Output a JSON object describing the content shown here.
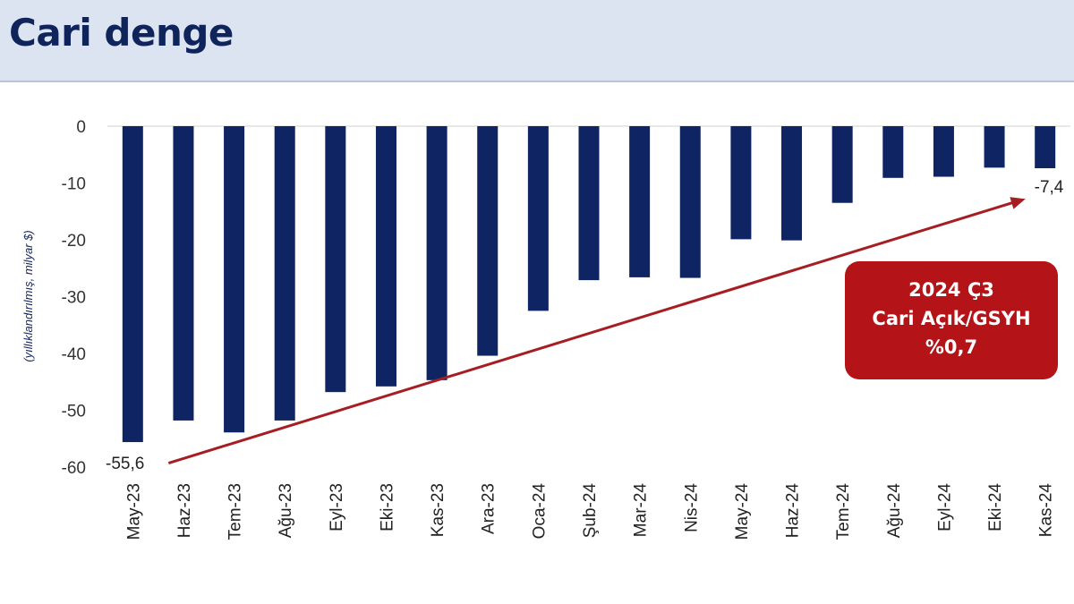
{
  "header": {
    "title": "Cari denge"
  },
  "callout": {
    "line1": "2024 Ç3",
    "line2": "Cari Açık/GSYH",
    "line3": "%0,7"
  },
  "colors": {
    "bar": "#0f2462",
    "trend": "#a61e22",
    "callout": "#b41317",
    "header_bg": "#dde4f1",
    "title": "#10245c"
  },
  "chart_data": {
    "type": "bar",
    "title": "",
    "ylabel": "(yıllıklandırılmış, milyar $)",
    "xlabel": "",
    "ylim": [
      -60,
      0
    ],
    "yticks": [
      0,
      -10,
      -20,
      -30,
      -40,
      -50,
      -60
    ],
    "grid": false,
    "categories": [
      "May-23",
      "Haz-23",
      "Tem-23",
      "Ağu-23",
      "Eyl-23",
      "Eki-23",
      "Kas-23",
      "Ara-23",
      "Oca-24",
      "Şub-24",
      "Mar-24",
      "Nis-24",
      "May-24",
      "Haz-24",
      "Tem-24",
      "Ağu-24",
      "Eyl-24",
      "Eki-24",
      "Kas-24"
    ],
    "values": [
      -55.6,
      -51.8,
      -53.9,
      -51.8,
      -46.8,
      -45.8,
      -44.7,
      -40.4,
      -32.5,
      -27.1,
      -26.6,
      -26.7,
      -19.9,
      -20.1,
      -13.5,
      -9.1,
      -8.9,
      -7.3,
      -7.4
    ],
    "annotations": [
      {
        "category": "May-23",
        "label": "-55,6"
      },
      {
        "category": "Kas-24",
        "label": "-7,4"
      }
    ],
    "trend_arrow": {
      "from_category": "May-23",
      "from_value": -59.3,
      "to_category": "Kas-24",
      "to_value": -12.8
    }
  }
}
